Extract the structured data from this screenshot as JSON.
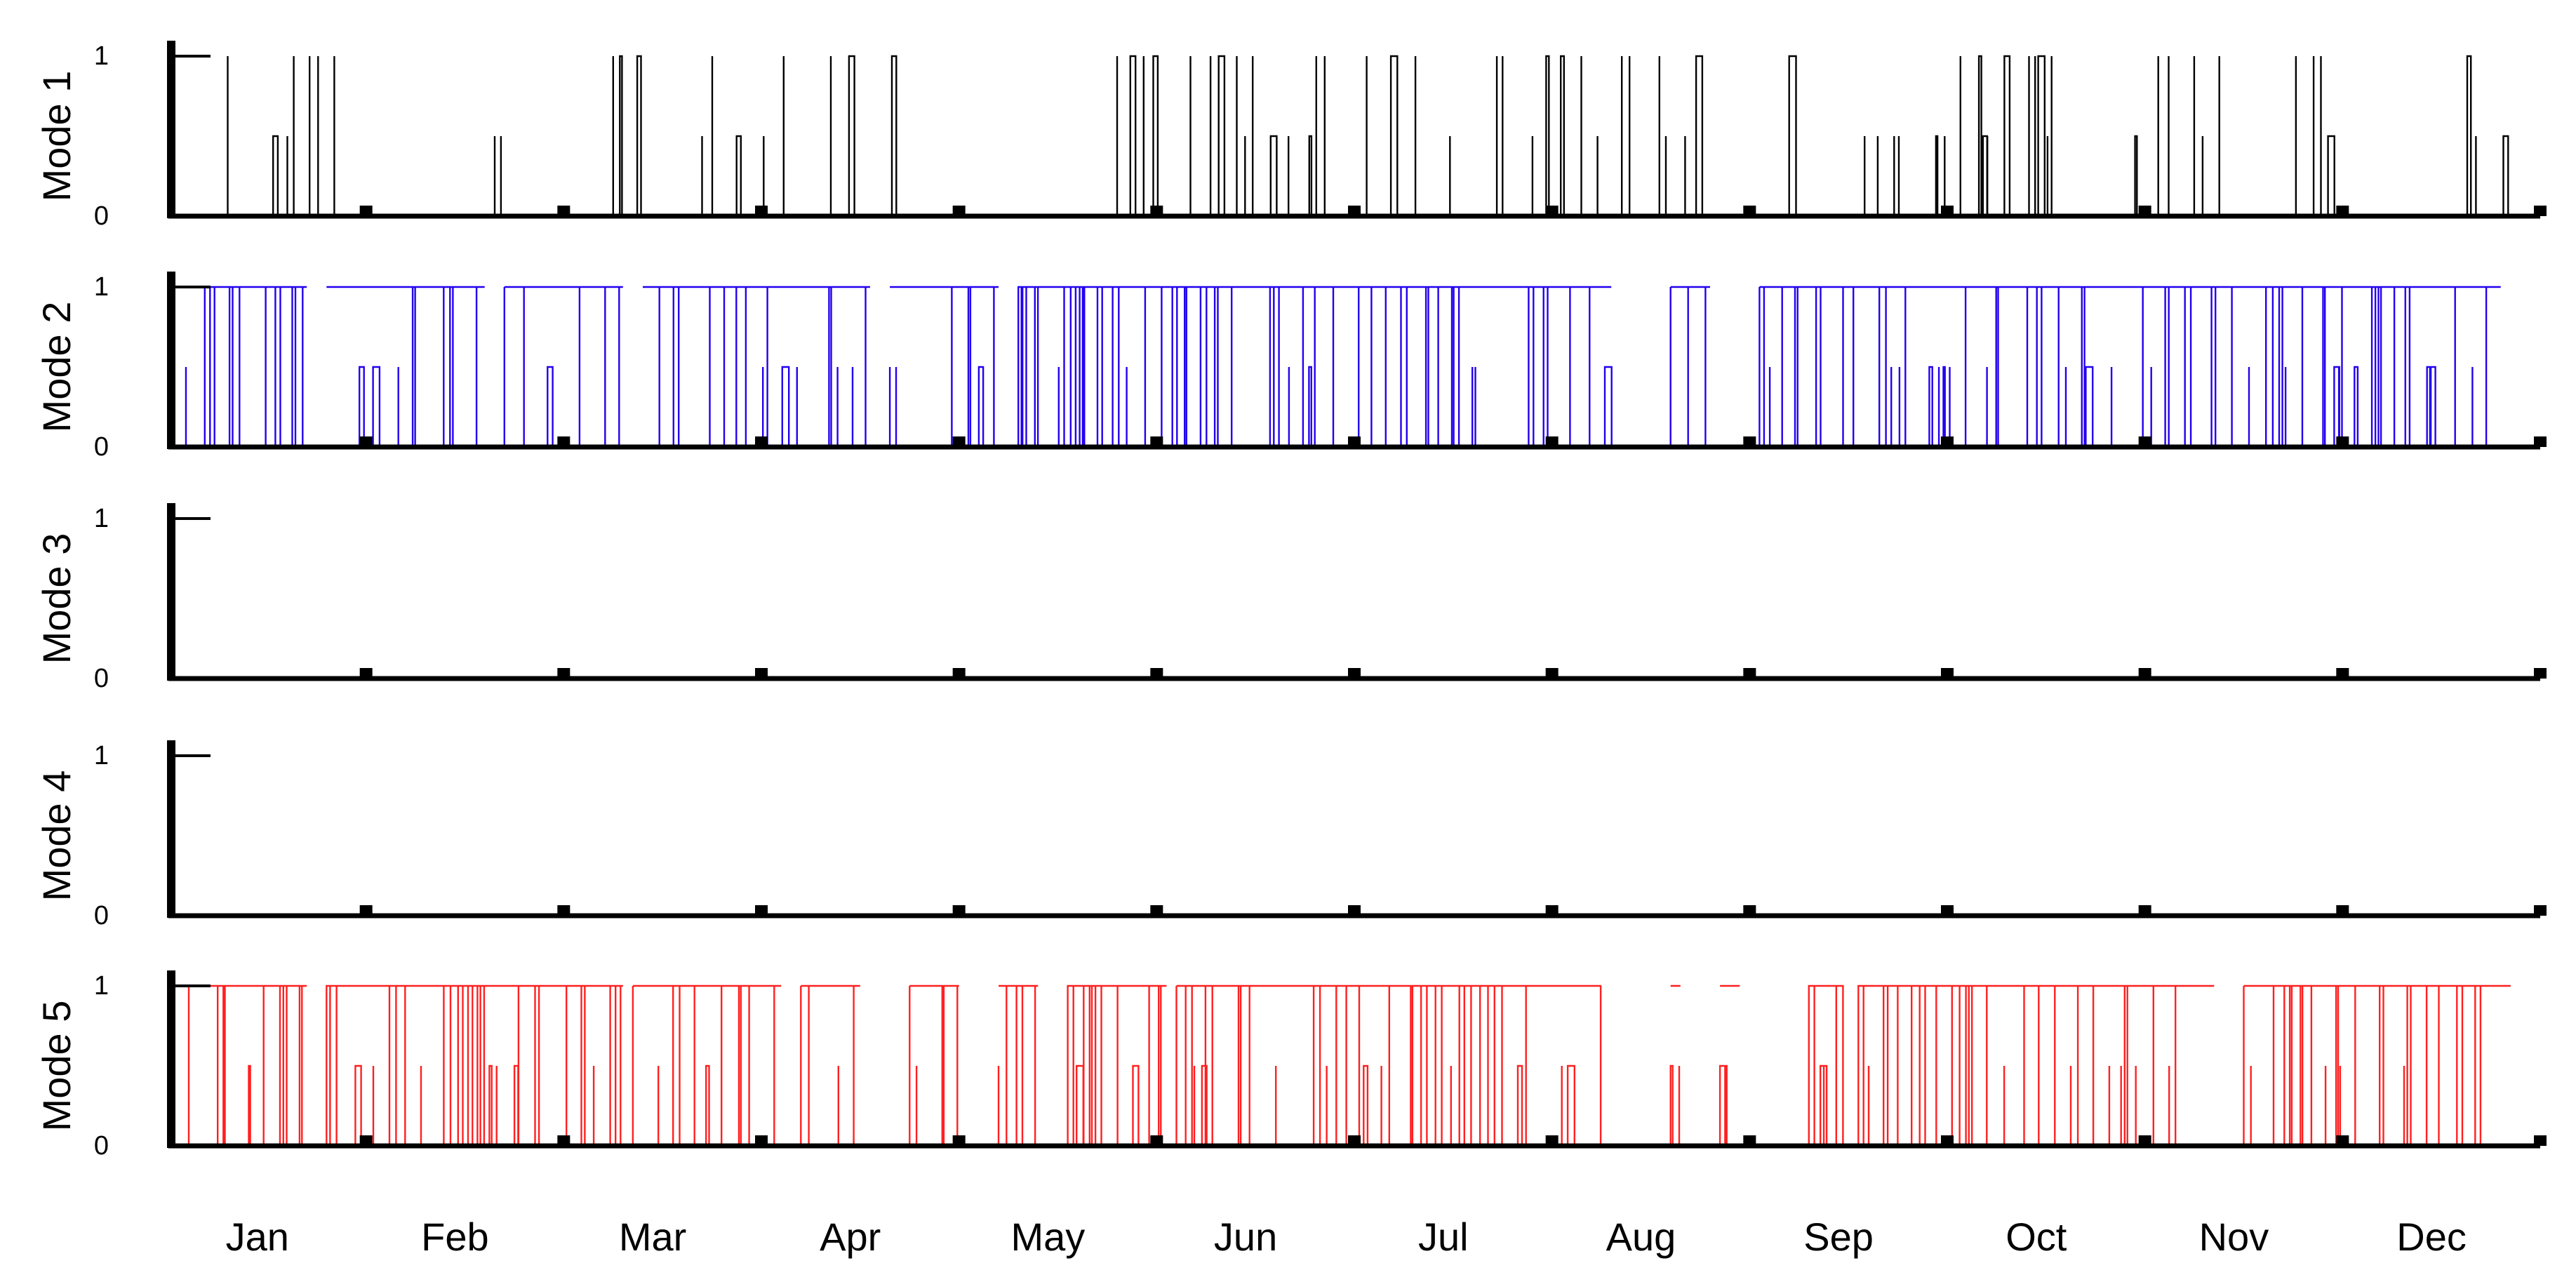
{
  "chart_data": {
    "type": "step-timeseries",
    "title": "",
    "xlabel": "",
    "months": [
      "Jan",
      "Feb",
      "Mar",
      "Apr",
      "May",
      "Jun",
      "Jul",
      "Aug",
      "Sep",
      "Oct",
      "Nov",
      "Dec"
    ],
    "ylim": [
      0,
      1
    ],
    "yticks": [
      "0",
      "1"
    ],
    "series": [
      {
        "name": "Mode 1",
        "color": "#000000",
        "segments": [
          [
            0.3,
            0.9
          ],
          [
            1.6,
            1.8
          ],
          [
            2.25,
            2.45
          ],
          [
            2.7,
            3.8
          ],
          [
            4.8,
            5.9
          ],
          [
            5.85,
            6.75
          ],
          [
            6.75,
            7.75
          ],
          [
            8.2,
            9.55
          ],
          [
            9.95,
            10.4
          ],
          [
            10.6,
            10.95
          ],
          [
            11.6,
            11.85
          ]
        ],
        "density": 0.55
      },
      {
        "name": "Mode 2",
        "color": "#2200ee",
        "segments": [
          [
            0.0,
            0.7
          ],
          [
            0.8,
            1.6
          ],
          [
            1.7,
            2.3
          ],
          [
            2.4,
            3.55
          ],
          [
            3.65,
            4.2
          ],
          [
            4.3,
            7.3
          ],
          [
            7.6,
            7.8
          ],
          [
            8.05,
            11.8
          ]
        ],
        "density": 0.7
      },
      {
        "name": "Mode 3",
        "color": "#000000",
        "segments": [],
        "density": 0
      },
      {
        "name": "Mode 4",
        "color": "#000000",
        "segments": [],
        "density": 0
      },
      {
        "name": "Mode 5",
        "color": "#ff2020",
        "segments": [
          [
            0.0,
            0.7
          ],
          [
            0.8,
            2.3
          ],
          [
            2.35,
            3.1
          ],
          [
            3.2,
            3.5
          ],
          [
            3.75,
            4.0
          ],
          [
            4.2,
            4.4
          ],
          [
            4.55,
            5.05
          ],
          [
            5.1,
            7.25
          ],
          [
            7.6,
            7.65
          ],
          [
            7.85,
            7.95
          ],
          [
            8.3,
            8.45
          ],
          [
            8.55,
            10.35
          ],
          [
            10.5,
            11.85
          ]
        ],
        "density": 0.75
      }
    ]
  }
}
